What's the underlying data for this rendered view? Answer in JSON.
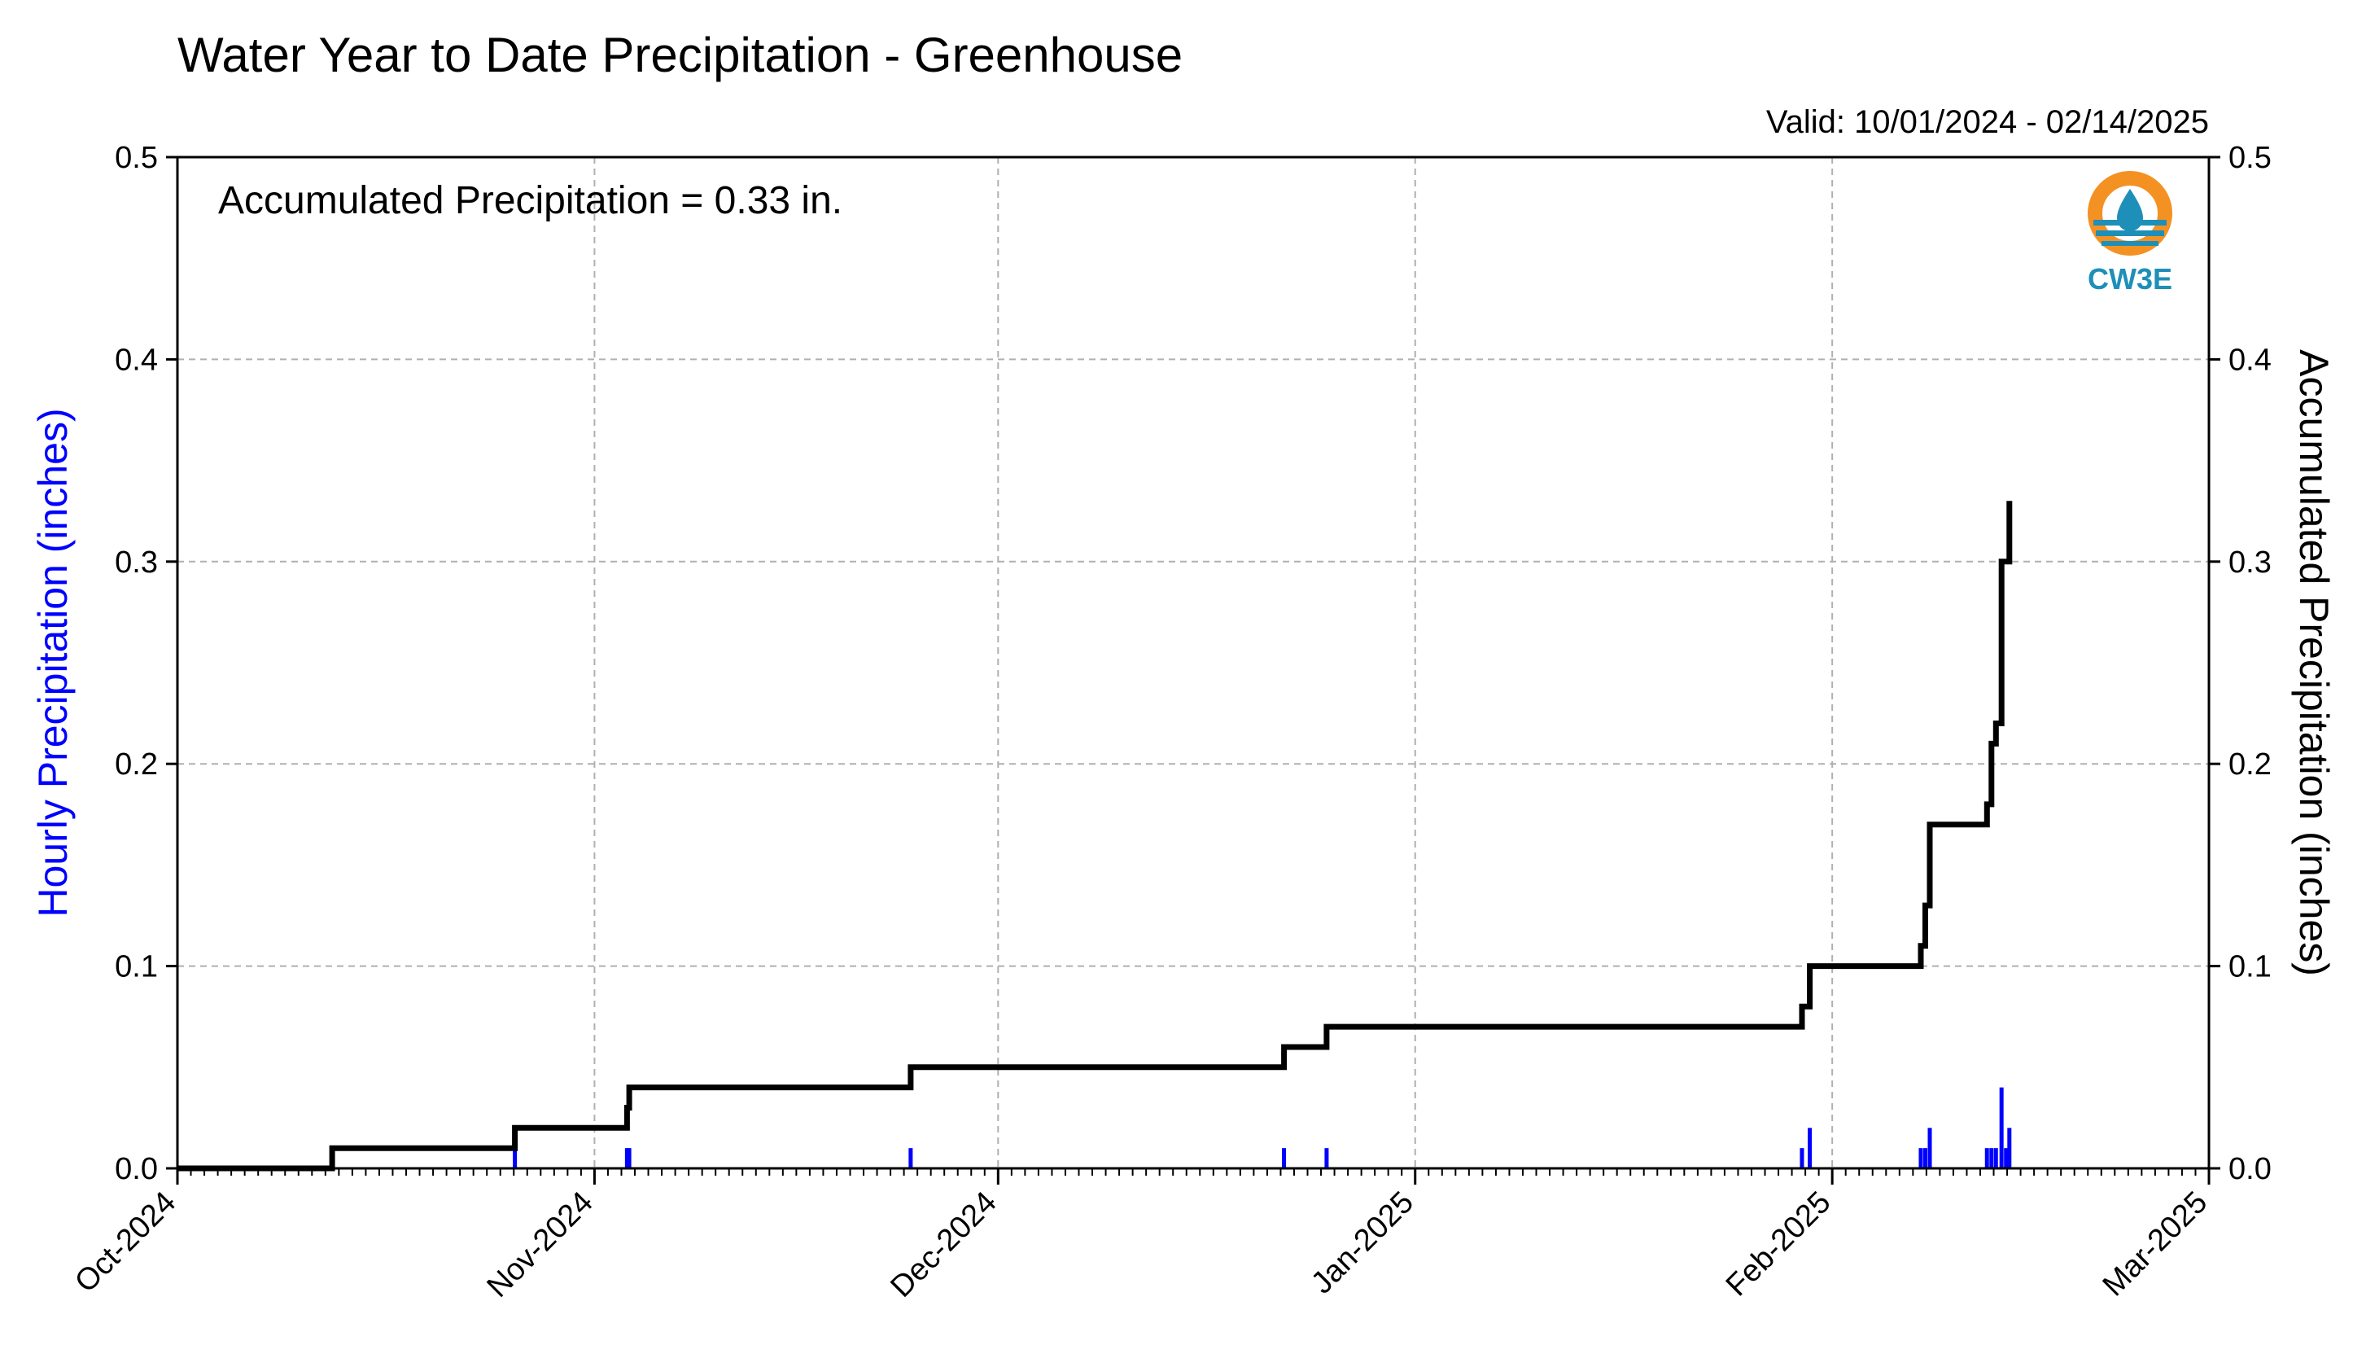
{
  "chart_data": {
    "type": "bar+line",
    "title": "Water Year to Date Precipitation - Greenhouse",
    "valid_text": "Valid: 10/01/2024 - 02/14/2025",
    "annotation": "Accumulated Precipitation = 0.33 in.",
    "logo_text": "CW3E",
    "ylabel_left": "Hourly Precipitation (inches)",
    "ylabel_right": "Accumulated Precipitation (inches)",
    "xlim": [
      "2024-10-01",
      "2025-03-01"
    ],
    "ylim": [
      0,
      0.5
    ],
    "yticks": [
      "0.0",
      "0.1",
      "0.2",
      "0.3",
      "0.4",
      "0.5"
    ],
    "ytick_values": [
      0,
      0.1,
      0.2,
      0.3,
      0.4,
      0.5
    ],
    "xticks": [
      {
        "date": "2024-10-01",
        "label": "Oct-2024"
      },
      {
        "date": "2024-11-01",
        "label": "Nov-2024"
      },
      {
        "date": "2024-12-01",
        "label": "Dec-2024"
      },
      {
        "date": "2025-01-01",
        "label": "Jan-2025"
      },
      {
        "date": "2025-02-01",
        "label": "Feb-2025"
      },
      {
        "date": "2025-03-01",
        "label": "Mar-2025"
      }
    ],
    "grid": true,
    "colors": {
      "hourly": "#0000ff",
      "accumulated": "#000000",
      "grid": "#b0b0b0",
      "logo_orange": "#f39223",
      "logo_blue": "#1d8fb8"
    },
    "hourly_series": {
      "name": "Hourly Precipitation",
      "points": [
        {
          "date": "2024-10-26T02:00",
          "value": 0.01
        },
        {
          "date": "2024-11-03T10:00",
          "value": 0.01
        },
        {
          "date": "2024-11-03T14:00",
          "value": 0.01
        },
        {
          "date": "2024-11-24T12:00",
          "value": 0.01
        },
        {
          "date": "2024-12-22T06:00",
          "value": 0.01
        },
        {
          "date": "2024-12-25T10:00",
          "value": 0.01
        },
        {
          "date": "2025-01-29T18:00",
          "value": 0.01
        },
        {
          "date": "2025-01-30T08:00",
          "value": 0.02
        },
        {
          "date": "2025-02-07T14:00",
          "value": 0.01
        },
        {
          "date": "2025-02-07T22:00",
          "value": 0.01
        },
        {
          "date": "2025-02-08T06:00",
          "value": 0.02
        },
        {
          "date": "2025-02-12T12:00",
          "value": 0.01
        },
        {
          "date": "2025-02-12T20:00",
          "value": 0.01
        },
        {
          "date": "2025-02-13T04:00",
          "value": 0.01
        },
        {
          "date": "2025-02-13T14:00",
          "value": 0.04
        },
        {
          "date": "2025-02-13T22:00",
          "value": 0.01
        },
        {
          "date": "2025-02-14T04:00",
          "value": 0.02
        }
      ]
    },
    "accumulated_series": {
      "name": "Accumulated Precipitation",
      "points": [
        {
          "date": "2024-10-01T00:00",
          "value": 0.0
        },
        {
          "date": "2024-10-12T12:00",
          "value": 0.01
        },
        {
          "date": "2024-10-26T02:00",
          "value": 0.02
        },
        {
          "date": "2024-11-03T10:00",
          "value": 0.03
        },
        {
          "date": "2024-11-03T14:00",
          "value": 0.04
        },
        {
          "date": "2024-11-24T12:00",
          "value": 0.05
        },
        {
          "date": "2024-12-22T06:00",
          "value": 0.06
        },
        {
          "date": "2024-12-25T10:00",
          "value": 0.07
        },
        {
          "date": "2025-01-29T18:00",
          "value": 0.08
        },
        {
          "date": "2025-01-30T08:00",
          "value": 0.1
        },
        {
          "date": "2025-02-07T14:00",
          "value": 0.11
        },
        {
          "date": "2025-02-07T22:00",
          "value": 0.13
        },
        {
          "date": "2025-02-08T06:00",
          "value": 0.17
        },
        {
          "date": "2025-02-12T12:00",
          "value": 0.18
        },
        {
          "date": "2025-02-12T20:00",
          "value": 0.21
        },
        {
          "date": "2025-02-13T04:00",
          "value": 0.22
        },
        {
          "date": "2025-02-13T14:00",
          "value": 0.3
        },
        {
          "date": "2025-02-14T04:00",
          "value": 0.33
        }
      ]
    }
  }
}
